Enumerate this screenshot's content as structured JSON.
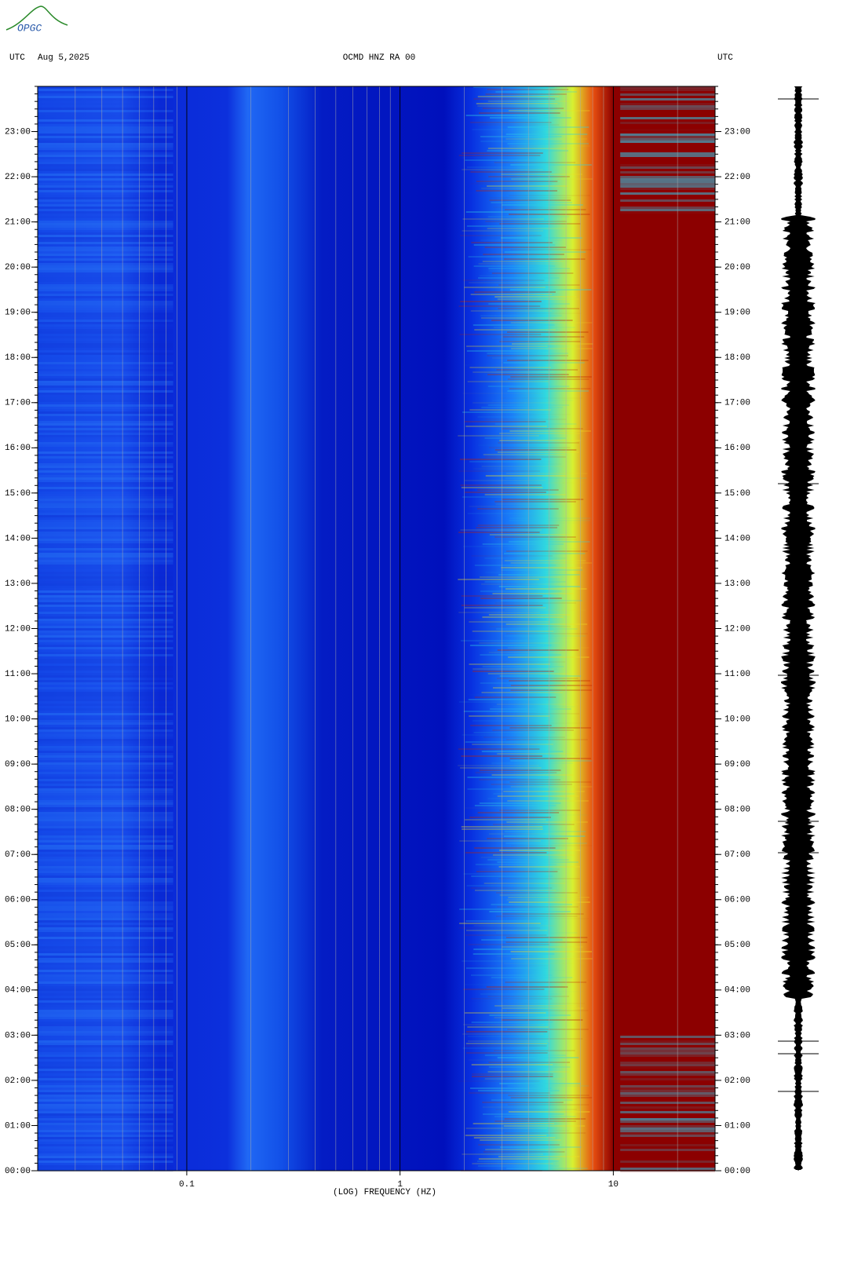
{
  "logo": "OPGC",
  "chart_data": {
    "type": "spectrogram",
    "title": "OCMD HNZ RA 00",
    "timezone_left": "UTC",
    "date": "Aug 5,2025",
    "timezone_right": "UTC",
    "x_label": "(LOG) FREQUENCY (HZ)",
    "x_scale": "log",
    "xlim": [
      0.02,
      30
    ],
    "xticks": [
      0.1,
      1,
      10
    ],
    "ylim": [
      0,
      24
    ],
    "yticks": [
      {
        "value": 0,
        "label": "00:00"
      },
      {
        "value": 1,
        "label": "01:00"
      },
      {
        "value": 2,
        "label": "02:00"
      },
      {
        "value": 3,
        "label": "03:00"
      },
      {
        "value": 4,
        "label": "04:00"
      },
      {
        "value": 5,
        "label": "05:00"
      },
      {
        "value": 6,
        "label": "06:00"
      },
      {
        "value": 7,
        "label": "07:00"
      },
      {
        "value": 8,
        "label": "08:00"
      },
      {
        "value": 9,
        "label": "09:00"
      },
      {
        "value": 10,
        "label": "10:00"
      },
      {
        "value": 11,
        "label": "11:00"
      },
      {
        "value": 12,
        "label": "12:00"
      },
      {
        "value": 13,
        "label": "13:00"
      },
      {
        "value": 14,
        "label": "14:00"
      },
      {
        "value": 15,
        "label": "15:00"
      },
      {
        "value": 16,
        "label": "16:00"
      },
      {
        "value": 17,
        "label": "17:00"
      },
      {
        "value": 18,
        "label": "18:00"
      },
      {
        "value": 19,
        "label": "19:00"
      },
      {
        "value": 20,
        "label": "20:00"
      },
      {
        "value": 21,
        "label": "21:00"
      },
      {
        "value": 22,
        "label": "22:00"
      },
      {
        "value": 23,
        "label": "23:00"
      }
    ]
  }
}
